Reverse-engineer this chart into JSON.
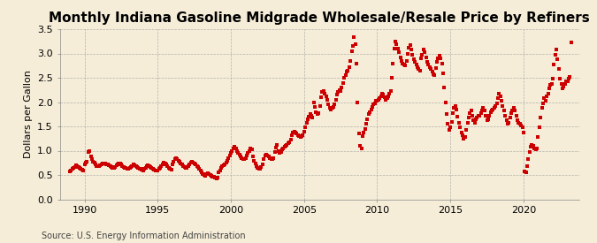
{
  "title": "Monthly Indiana Gasoline Midgrade Wholesale/Resale Price by Refiners",
  "ylabel": "Dollars per Gallon",
  "source": "Source: U.S. Energy Information Administration",
  "ylim": [
    0.0,
    3.5
  ],
  "yticks": [
    0.0,
    0.5,
    1.0,
    1.5,
    2.0,
    2.5,
    3.0,
    3.5
  ],
  "xticks": [
    1990,
    1995,
    2000,
    2005,
    2010,
    2015,
    2020
  ],
  "xlim_start": 1988.3,
  "xlim_end": 2023.8,
  "dot_color": "#cc0000",
  "bg_color": "#f5edd8",
  "grid_color": "#999999",
  "title_fontsize": 11,
  "label_fontsize": 8,
  "tick_fontsize": 8,
  "data": [
    [
      1989.0,
      0.57
    ],
    [
      1989.08,
      0.6
    ],
    [
      1989.17,
      0.62
    ],
    [
      1989.25,
      0.64
    ],
    [
      1989.33,
      0.67
    ],
    [
      1989.42,
      0.7
    ],
    [
      1989.5,
      0.68
    ],
    [
      1989.58,
      0.66
    ],
    [
      1989.67,
      0.65
    ],
    [
      1989.75,
      0.63
    ],
    [
      1989.83,
      0.61
    ],
    [
      1989.92,
      0.6
    ],
    [
      1990.0,
      0.72
    ],
    [
      1990.08,
      0.75
    ],
    [
      1990.17,
      0.78
    ],
    [
      1990.25,
      0.98
    ],
    [
      1990.33,
      1.0
    ],
    [
      1990.42,
      0.88
    ],
    [
      1990.5,
      0.82
    ],
    [
      1990.58,
      0.78
    ],
    [
      1990.67,
      0.75
    ],
    [
      1990.75,
      0.72
    ],
    [
      1990.83,
      0.69
    ],
    [
      1990.92,
      0.68
    ],
    [
      1991.0,
      0.68
    ],
    [
      1991.08,
      0.7
    ],
    [
      1991.17,
      0.71
    ],
    [
      1991.25,
      0.73
    ],
    [
      1991.33,
      0.74
    ],
    [
      1991.42,
      0.73
    ],
    [
      1991.5,
      0.72
    ],
    [
      1991.58,
      0.71
    ],
    [
      1991.67,
      0.7
    ],
    [
      1991.75,
      0.68
    ],
    [
      1991.83,
      0.66
    ],
    [
      1991.92,
      0.65
    ],
    [
      1992.0,
      0.65
    ],
    [
      1992.08,
      0.67
    ],
    [
      1992.17,
      0.7
    ],
    [
      1992.25,
      0.72
    ],
    [
      1992.33,
      0.74
    ],
    [
      1992.42,
      0.73
    ],
    [
      1992.5,
      0.71
    ],
    [
      1992.58,
      0.69
    ],
    [
      1992.67,
      0.67
    ],
    [
      1992.75,
      0.65
    ],
    [
      1992.83,
      0.64
    ],
    [
      1992.92,
      0.62
    ],
    [
      1993.0,
      0.63
    ],
    [
      1993.08,
      0.65
    ],
    [
      1993.17,
      0.67
    ],
    [
      1993.25,
      0.69
    ],
    [
      1993.33,
      0.71
    ],
    [
      1993.42,
      0.7
    ],
    [
      1993.5,
      0.68
    ],
    [
      1993.58,
      0.66
    ],
    [
      1993.67,
      0.65
    ],
    [
      1993.75,
      0.63
    ],
    [
      1993.83,
      0.62
    ],
    [
      1993.92,
      0.61
    ],
    [
      1994.0,
      0.6
    ],
    [
      1994.08,
      0.62
    ],
    [
      1994.17,
      0.65
    ],
    [
      1994.25,
      0.68
    ],
    [
      1994.33,
      0.7
    ],
    [
      1994.42,
      0.69
    ],
    [
      1994.5,
      0.67
    ],
    [
      1994.58,
      0.65
    ],
    [
      1994.67,
      0.63
    ],
    [
      1994.75,
      0.61
    ],
    [
      1994.83,
      0.6
    ],
    [
      1994.92,
      0.59
    ],
    [
      1995.0,
      0.59
    ],
    [
      1995.08,
      0.62
    ],
    [
      1995.17,
      0.65
    ],
    [
      1995.25,
      0.68
    ],
    [
      1995.33,
      0.72
    ],
    [
      1995.42,
      0.75
    ],
    [
      1995.5,
      0.73
    ],
    [
      1995.58,
      0.71
    ],
    [
      1995.67,
      0.68
    ],
    [
      1995.75,
      0.65
    ],
    [
      1995.83,
      0.63
    ],
    [
      1995.92,
      0.61
    ],
    [
      1996.0,
      0.72
    ],
    [
      1996.08,
      0.78
    ],
    [
      1996.17,
      0.82
    ],
    [
      1996.25,
      0.85
    ],
    [
      1996.33,
      0.83
    ],
    [
      1996.42,
      0.8
    ],
    [
      1996.5,
      0.77
    ],
    [
      1996.58,
      0.74
    ],
    [
      1996.67,
      0.71
    ],
    [
      1996.75,
      0.68
    ],
    [
      1996.83,
      0.66
    ],
    [
      1996.92,
      0.64
    ],
    [
      1997.0,
      0.65
    ],
    [
      1997.08,
      0.68
    ],
    [
      1997.17,
      0.72
    ],
    [
      1997.25,
      0.75
    ],
    [
      1997.33,
      0.77
    ],
    [
      1997.42,
      0.76
    ],
    [
      1997.5,
      0.74
    ],
    [
      1997.58,
      0.72
    ],
    [
      1997.67,
      0.69
    ],
    [
      1997.75,
      0.66
    ],
    [
      1997.83,
      0.63
    ],
    [
      1997.92,
      0.6
    ],
    [
      1998.0,
      0.55
    ],
    [
      1998.08,
      0.52
    ],
    [
      1998.17,
      0.5
    ],
    [
      1998.25,
      0.49
    ],
    [
      1998.33,
      0.51
    ],
    [
      1998.42,
      0.53
    ],
    [
      1998.5,
      0.52
    ],
    [
      1998.58,
      0.5
    ],
    [
      1998.67,
      0.48
    ],
    [
      1998.75,
      0.47
    ],
    [
      1998.83,
      0.46
    ],
    [
      1998.92,
      0.45
    ],
    [
      1999.0,
      0.43
    ],
    [
      1999.08,
      0.45
    ],
    [
      1999.17,
      0.55
    ],
    [
      1999.25,
      0.6
    ],
    [
      1999.33,
      0.65
    ],
    [
      1999.42,
      0.68
    ],
    [
      1999.5,
      0.7
    ],
    [
      1999.58,
      0.72
    ],
    [
      1999.67,
      0.75
    ],
    [
      1999.75,
      0.8
    ],
    [
      1999.83,
      0.85
    ],
    [
      1999.92,
      0.9
    ],
    [
      2000.0,
      0.95
    ],
    [
      2000.08,
      1.0
    ],
    [
      2000.17,
      1.05
    ],
    [
      2000.25,
      1.08
    ],
    [
      2000.33,
      1.05
    ],
    [
      2000.42,
      1.0
    ],
    [
      2000.5,
      0.96
    ],
    [
      2000.58,
      0.92
    ],
    [
      2000.67,
      0.88
    ],
    [
      2000.75,
      0.85
    ],
    [
      2000.83,
      0.83
    ],
    [
      2000.92,
      0.82
    ],
    [
      2001.0,
      0.85
    ],
    [
      2001.08,
      0.9
    ],
    [
      2001.17,
      0.95
    ],
    [
      2001.25,
      1.0
    ],
    [
      2001.33,
      1.05
    ],
    [
      2001.42,
      1.02
    ],
    [
      2001.5,
      0.88
    ],
    [
      2001.58,
      0.8
    ],
    [
      2001.67,
      0.73
    ],
    [
      2001.75,
      0.68
    ],
    [
      2001.83,
      0.65
    ],
    [
      2001.92,
      0.62
    ],
    [
      2002.0,
      0.62
    ],
    [
      2002.08,
      0.66
    ],
    [
      2002.17,
      0.72
    ],
    [
      2002.25,
      0.82
    ],
    [
      2002.33,
      0.9
    ],
    [
      2002.42,
      0.92
    ],
    [
      2002.5,
      0.9
    ],
    [
      2002.58,
      0.88
    ],
    [
      2002.67,
      0.85
    ],
    [
      2002.75,
      0.83
    ],
    [
      2002.83,
      0.83
    ],
    [
      2002.92,
      0.85
    ],
    [
      2003.0,
      0.97
    ],
    [
      2003.08,
      1.07
    ],
    [
      2003.17,
      1.12
    ],
    [
      2003.25,
      1.0
    ],
    [
      2003.33,
      0.95
    ],
    [
      2003.42,
      0.98
    ],
    [
      2003.5,
      1.02
    ],
    [
      2003.58,
      1.05
    ],
    [
      2003.67,
      1.08
    ],
    [
      2003.75,
      1.1
    ],
    [
      2003.83,
      1.12
    ],
    [
      2003.92,
      1.15
    ],
    [
      2004.0,
      1.18
    ],
    [
      2004.08,
      1.22
    ],
    [
      2004.17,
      1.32
    ],
    [
      2004.25,
      1.37
    ],
    [
      2004.33,
      1.4
    ],
    [
      2004.42,
      1.38
    ],
    [
      2004.5,
      1.35
    ],
    [
      2004.58,
      1.32
    ],
    [
      2004.67,
      1.3
    ],
    [
      2004.75,
      1.28
    ],
    [
      2004.83,
      1.3
    ],
    [
      2004.92,
      1.32
    ],
    [
      2005.0,
      1.4
    ],
    [
      2005.08,
      1.48
    ],
    [
      2005.17,
      1.58
    ],
    [
      2005.25,
      1.65
    ],
    [
      2005.33,
      1.7
    ],
    [
      2005.42,
      1.75
    ],
    [
      2005.5,
      1.72
    ],
    [
      2005.58,
      1.68
    ],
    [
      2005.67,
      2.0
    ],
    [
      2005.75,
      1.9
    ],
    [
      2005.83,
      1.8
    ],
    [
      2005.92,
      1.75
    ],
    [
      2006.0,
      1.78
    ],
    [
      2006.08,
      1.92
    ],
    [
      2006.17,
      2.1
    ],
    [
      2006.25,
      2.2
    ],
    [
      2006.33,
      2.22
    ],
    [
      2006.42,
      2.18
    ],
    [
      2006.5,
      2.12
    ],
    [
      2006.58,
      2.05
    ],
    [
      2006.67,
      1.95
    ],
    [
      2006.75,
      1.88
    ],
    [
      2006.83,
      1.85
    ],
    [
      2006.92,
      1.88
    ],
    [
      2007.0,
      1.9
    ],
    [
      2007.08,
      1.95
    ],
    [
      2007.17,
      2.05
    ],
    [
      2007.25,
      2.15
    ],
    [
      2007.33,
      2.2
    ],
    [
      2007.42,
      2.25
    ],
    [
      2007.5,
      2.22
    ],
    [
      2007.58,
      2.3
    ],
    [
      2007.67,
      2.4
    ],
    [
      2007.75,
      2.5
    ],
    [
      2007.83,
      2.55
    ],
    [
      2007.92,
      2.62
    ],
    [
      2008.0,
      2.65
    ],
    [
      2008.08,
      2.72
    ],
    [
      2008.17,
      2.85
    ],
    [
      2008.25,
      3.05
    ],
    [
      2008.33,
      3.15
    ],
    [
      2008.42,
      3.33
    ],
    [
      2008.5,
      3.2
    ],
    [
      2008.58,
      2.8
    ],
    [
      2008.67,
      2.0
    ],
    [
      2008.75,
      1.35
    ],
    [
      2008.83,
      1.1
    ],
    [
      2008.92,
      1.05
    ],
    [
      2009.0,
      1.3
    ],
    [
      2009.08,
      1.38
    ],
    [
      2009.17,
      1.45
    ],
    [
      2009.25,
      1.55
    ],
    [
      2009.33,
      1.65
    ],
    [
      2009.42,
      1.75
    ],
    [
      2009.5,
      1.8
    ],
    [
      2009.58,
      1.85
    ],
    [
      2009.67,
      1.9
    ],
    [
      2009.75,
      1.95
    ],
    [
      2009.83,
      1.98
    ],
    [
      2009.92,
      2.02
    ],
    [
      2010.0,
      2.02
    ],
    [
      2010.08,
      2.05
    ],
    [
      2010.17,
      2.08
    ],
    [
      2010.25,
      2.12
    ],
    [
      2010.33,
      2.18
    ],
    [
      2010.42,
      2.15
    ],
    [
      2010.5,
      2.1
    ],
    [
      2010.58,
      2.05
    ],
    [
      2010.67,
      2.08
    ],
    [
      2010.75,
      2.12
    ],
    [
      2010.83,
      2.18
    ],
    [
      2010.92,
      2.22
    ],
    [
      2011.0,
      2.5
    ],
    [
      2011.08,
      2.8
    ],
    [
      2011.17,
      3.1
    ],
    [
      2011.25,
      3.25
    ],
    [
      2011.33,
      3.2
    ],
    [
      2011.42,
      3.1
    ],
    [
      2011.5,
      3.02
    ],
    [
      2011.58,
      2.92
    ],
    [
      2011.67,
      2.85
    ],
    [
      2011.75,
      2.8
    ],
    [
      2011.83,
      2.78
    ],
    [
      2011.92,
      2.75
    ],
    [
      2012.0,
      2.85
    ],
    [
      2012.08,
      3.0
    ],
    [
      2012.17,
      3.12
    ],
    [
      2012.25,
      3.18
    ],
    [
      2012.33,
      3.08
    ],
    [
      2012.42,
      2.98
    ],
    [
      2012.5,
      2.88
    ],
    [
      2012.58,
      2.82
    ],
    [
      2012.67,
      2.78
    ],
    [
      2012.75,
      2.72
    ],
    [
      2012.83,
      2.68
    ],
    [
      2012.92,
      2.65
    ],
    [
      2013.0,
      2.9
    ],
    [
      2013.08,
      2.98
    ],
    [
      2013.17,
      3.08
    ],
    [
      2013.25,
      3.02
    ],
    [
      2013.33,
      2.92
    ],
    [
      2013.42,
      2.82
    ],
    [
      2013.5,
      2.78
    ],
    [
      2013.58,
      2.72
    ],
    [
      2013.67,
      2.68
    ],
    [
      2013.75,
      2.62
    ],
    [
      2013.83,
      2.58
    ],
    [
      2013.92,
      2.55
    ],
    [
      2014.0,
      2.7
    ],
    [
      2014.08,
      2.82
    ],
    [
      2014.17,
      2.9
    ],
    [
      2014.25,
      2.95
    ],
    [
      2014.33,
      2.9
    ],
    [
      2014.42,
      2.8
    ],
    [
      2014.5,
      2.6
    ],
    [
      2014.58,
      2.3
    ],
    [
      2014.67,
      2.0
    ],
    [
      2014.75,
      1.75
    ],
    [
      2014.83,
      1.55
    ],
    [
      2014.92,
      1.42
    ],
    [
      2015.0,
      1.48
    ],
    [
      2015.08,
      1.6
    ],
    [
      2015.17,
      1.78
    ],
    [
      2015.25,
      1.88
    ],
    [
      2015.33,
      1.92
    ],
    [
      2015.42,
      1.85
    ],
    [
      2015.5,
      1.7
    ],
    [
      2015.58,
      1.58
    ],
    [
      2015.67,
      1.48
    ],
    [
      2015.75,
      1.38
    ],
    [
      2015.83,
      1.32
    ],
    [
      2015.92,
      1.25
    ],
    [
      2016.0,
      1.28
    ],
    [
      2016.08,
      1.42
    ],
    [
      2016.17,
      1.58
    ],
    [
      2016.25,
      1.68
    ],
    [
      2016.33,
      1.78
    ],
    [
      2016.42,
      1.82
    ],
    [
      2016.5,
      1.72
    ],
    [
      2016.58,
      1.62
    ],
    [
      2016.67,
      1.58
    ],
    [
      2016.75,
      1.65
    ],
    [
      2016.83,
      1.68
    ],
    [
      2016.92,
      1.72
    ],
    [
      2017.0,
      1.72
    ],
    [
      2017.08,
      1.78
    ],
    [
      2017.17,
      1.82
    ],
    [
      2017.25,
      1.88
    ],
    [
      2017.33,
      1.82
    ],
    [
      2017.42,
      1.72
    ],
    [
      2017.5,
      1.62
    ],
    [
      2017.58,
      1.65
    ],
    [
      2017.67,
      1.72
    ],
    [
      2017.75,
      1.8
    ],
    [
      2017.83,
      1.82
    ],
    [
      2017.92,
      1.85
    ],
    [
      2018.0,
      1.88
    ],
    [
      2018.08,
      1.92
    ],
    [
      2018.17,
      1.98
    ],
    [
      2018.25,
      2.08
    ],
    [
      2018.33,
      2.18
    ],
    [
      2018.42,
      2.12
    ],
    [
      2018.5,
      2.02
    ],
    [
      2018.58,
      1.92
    ],
    [
      2018.67,
      1.82
    ],
    [
      2018.75,
      1.72
    ],
    [
      2018.83,
      1.62
    ],
    [
      2018.92,
      1.55
    ],
    [
      2019.0,
      1.58
    ],
    [
      2019.08,
      1.68
    ],
    [
      2019.17,
      1.78
    ],
    [
      2019.25,
      1.82
    ],
    [
      2019.33,
      1.88
    ],
    [
      2019.42,
      1.82
    ],
    [
      2019.5,
      1.72
    ],
    [
      2019.58,
      1.62
    ],
    [
      2019.67,
      1.58
    ],
    [
      2019.75,
      1.55
    ],
    [
      2019.83,
      1.52
    ],
    [
      2019.92,
      1.48
    ],
    [
      2020.0,
      1.38
    ],
    [
      2020.08,
      0.58
    ],
    [
      2020.17,
      0.55
    ],
    [
      2020.25,
      0.68
    ],
    [
      2020.33,
      0.82
    ],
    [
      2020.42,
      0.98
    ],
    [
      2020.5,
      1.08
    ],
    [
      2020.58,
      1.12
    ],
    [
      2020.67,
      1.1
    ],
    [
      2020.75,
      1.05
    ],
    [
      2020.83,
      1.02
    ],
    [
      2020.92,
      1.05
    ],
    [
      2021.0,
      1.28
    ],
    [
      2021.08,
      1.48
    ],
    [
      2021.17,
      1.68
    ],
    [
      2021.25,
      1.88
    ],
    [
      2021.33,
      1.98
    ],
    [
      2021.42,
      2.08
    ],
    [
      2021.5,
      2.02
    ],
    [
      2021.58,
      2.12
    ],
    [
      2021.67,
      2.18
    ],
    [
      2021.75,
      2.28
    ],
    [
      2021.83,
      2.35
    ],
    [
      2021.92,
      2.38
    ],
    [
      2022.0,
      2.48
    ],
    [
      2022.08,
      2.78
    ],
    [
      2022.17,
      2.98
    ],
    [
      2022.25,
      3.08
    ],
    [
      2022.33,
      2.88
    ],
    [
      2022.42,
      2.68
    ],
    [
      2022.5,
      2.48
    ],
    [
      2022.58,
      2.38
    ],
    [
      2022.67,
      2.28
    ],
    [
      2022.75,
      2.32
    ],
    [
      2022.83,
      2.38
    ],
    [
      2022.92,
      2.42
    ],
    [
      2023.0,
      2.42
    ],
    [
      2023.08,
      2.48
    ],
    [
      2023.17,
      2.52
    ],
    [
      2023.25,
      3.22
    ]
  ]
}
